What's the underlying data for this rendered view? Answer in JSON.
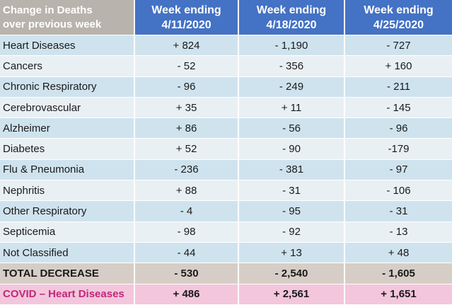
{
  "header": {
    "label": "Change in Deaths\nover previous week",
    "col1": "Week ending\n4/11/2020",
    "col2": "Week ending\n4/18/2020",
    "col3": "Week ending\n4/25/2020"
  },
  "rows": [
    {
      "label": "Heart Diseases",
      "v1": "+ 824",
      "v2": "- 1,190",
      "v3": "- 727"
    },
    {
      "label": "Cancers",
      "v1": "- 52",
      "v2": "- 356",
      "v3": "+ 160"
    },
    {
      "label": "Chronic Respiratory",
      "v1": "- 96",
      "v2": "- 249",
      "v3": "- 211"
    },
    {
      "label": "Cerebrovascular",
      "v1": "+ 35",
      "v2": "+ 11",
      "v3": "- 145"
    },
    {
      "label": "Alzheimer",
      "v1": "+ 86",
      "v2": "- 56",
      "v3": "- 96"
    },
    {
      "label": "Diabetes",
      "v1": "+ 52",
      "v2": "- 90",
      "v3": "-179"
    },
    {
      "label": "Flu & Pneumonia",
      "v1": "- 236",
      "v2": "- 381",
      "v3": "- 97"
    },
    {
      "label": "Nephritis",
      "v1": "+ 88",
      "v2": "- 31",
      "v3": "- 106"
    },
    {
      "label": "Other Respiratory",
      "v1": "- 4",
      "v2": "- 95",
      "v3": "- 31"
    },
    {
      "label": "Septicemia",
      "v1": "- 98",
      "v2": "- 92",
      "v3": "- 13"
    },
    {
      "label": "Not Classified",
      "v1": "- 44",
      "v2": "+ 13",
      "v3": "+ 48"
    }
  ],
  "total": {
    "label": "TOTAL DECREASE",
    "v1": "- 530",
    "v2": "- 2,540",
    "v3": "- 1,605"
  },
  "covid": {
    "label": "COVID – Heart Diseases",
    "v1": "+ 486",
    "v2": "+ 2,561",
    "v3": "+ 1,651"
  },
  "colors": {
    "header_blue": "#4472c4",
    "header_label": "#b9b3ad",
    "row_odd": "#cfe3ee",
    "row_even": "#e9f0f4",
    "total_bg": "#d6cec6",
    "covid_bg": "#f3c6dc",
    "covid_text": "#c0287a"
  }
}
